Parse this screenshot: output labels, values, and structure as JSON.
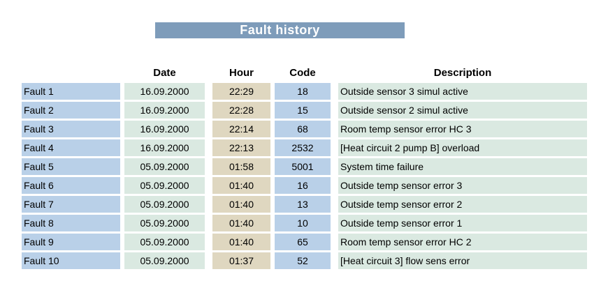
{
  "title": "Fault history",
  "colors": {
    "banner": "#7E9CBA",
    "blue": "#B9D0E8",
    "mint": "#DAE9E1",
    "tan": "#DFD7C0",
    "title_text": "#FFFFFF",
    "cell_text": "#000000"
  },
  "table": {
    "headers": {
      "fault": "",
      "date": "Date",
      "hour": "Hour",
      "code": "Code",
      "description": "Description"
    },
    "rows": [
      {
        "label": "Fault 1",
        "date": "16.09.2000",
        "hour": "22:29",
        "code": "18",
        "description": "Outside sensor 3 simul active"
      },
      {
        "label": "Fault 2",
        "date": "16.09.2000",
        "hour": "22:28",
        "code": "15",
        "description": "Outside sensor 2 simul active"
      },
      {
        "label": "Fault 3",
        "date": "16.09.2000",
        "hour": "22:14",
        "code": "68",
        "description": "Room temp sensor error HC 3"
      },
      {
        "label": "Fault 4",
        "date": "16.09.2000",
        "hour": "22:13",
        "code": "2532",
        "description": "[Heat circuit 2 pump B] overload"
      },
      {
        "label": "Fault 5",
        "date": "05.09.2000",
        "hour": "01:58",
        "code": "5001",
        "description": "System time failure"
      },
      {
        "label": "Fault 6",
        "date": "05.09.2000",
        "hour": "01:40",
        "code": "16",
        "description": "Outside temp sensor error 3"
      },
      {
        "label": "Fault 7",
        "date": "05.09.2000",
        "hour": "01:40",
        "code": "13",
        "description": "Outside temp sensor error 2"
      },
      {
        "label": "Fault 8",
        "date": "05.09.2000",
        "hour": "01:40",
        "code": "10",
        "description": "Outside temp sensor error 1"
      },
      {
        "label": "Fault 9",
        "date": "05.09.2000",
        "hour": "01:40",
        "code": "65",
        "description": "Room temp sensor error HC 2"
      },
      {
        "label": "Fault 10",
        "date": "05.09.2000",
        "hour": "01:37",
        "code": "52",
        "description": "[Heat circuit 3] flow sens error"
      }
    ]
  }
}
